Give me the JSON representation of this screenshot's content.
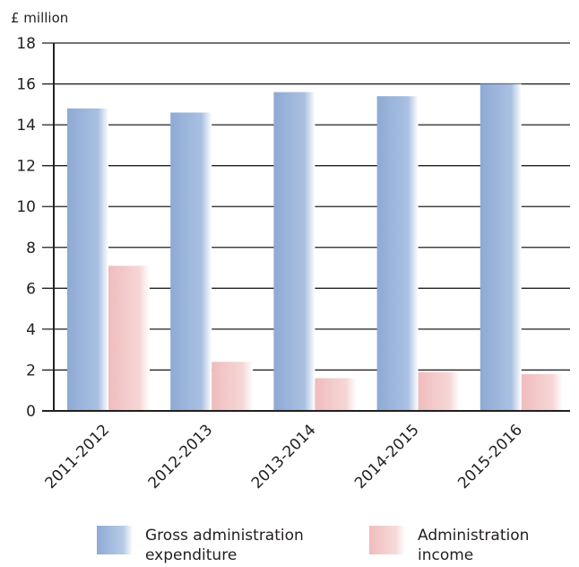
{
  "chart_data": {
    "type": "bar",
    "ylabel": "£ million",
    "ylim": [
      0,
      18
    ],
    "yticks": [
      0,
      2,
      4,
      6,
      8,
      10,
      12,
      14,
      16,
      18
    ],
    "grid": true,
    "categories": [
      "2011-2012",
      "2012-2013",
      "2013-2014",
      "2014-2015",
      "2015-2016"
    ],
    "series": [
      {
        "name": "Gross administration expenditure",
        "values": [
          14.8,
          14.6,
          15.6,
          15.4,
          16.0
        ],
        "color": "#8eaad4"
      },
      {
        "name": "Administration income",
        "values": [
          7.1,
          2.4,
          1.6,
          1.9,
          1.8
        ],
        "color": "#f0bcbd"
      }
    ],
    "legend": {
      "placement": "bottom",
      "labels": [
        [
          "Gross administration",
          "expenditure"
        ],
        [
          "Administration",
          "income"
        ]
      ]
    }
  }
}
